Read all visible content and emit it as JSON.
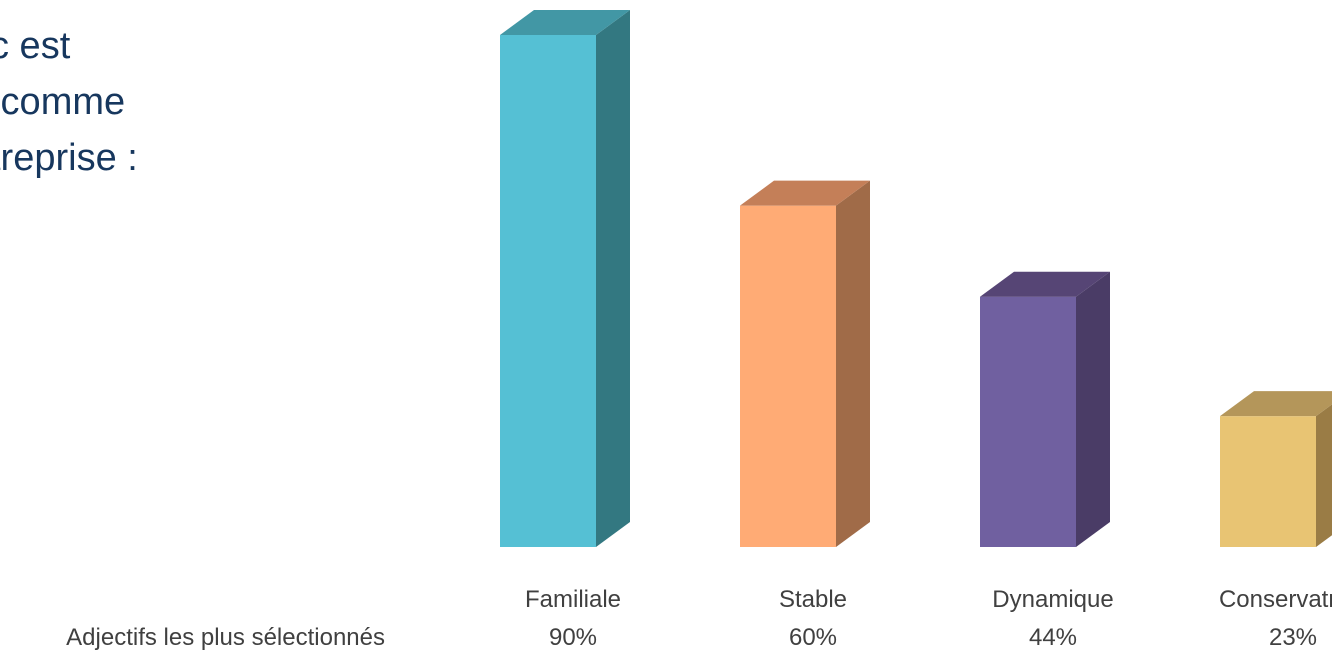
{
  "title_lines": [
    "c est",
    " comme",
    "treprise :"
  ],
  "chart_data": {
    "type": "bar",
    "categories": [
      "Familiale",
      "Stable",
      "Dynamique",
      "Conservatrice"
    ],
    "values": [
      90,
      60,
      44,
      23
    ],
    "value_labels": [
      "90%",
      "60%",
      "44%",
      "23%"
    ],
    "row_label": "Adjectifs les plus sélectionnés",
    "ylim": [
      0,
      90
    ],
    "grid": false,
    "colors": {
      "front": [
        "#55c0d4",
        "#ffab75",
        "#7060a0",
        "#e8c473"
      ],
      "side": [
        "#337881",
        "#a06b48",
        "#4a3c66",
        "#9a7c45"
      ],
      "top": [
        "#4297a5",
        "#c47f58",
        "#564575",
        "#b4965a"
      ]
    }
  }
}
